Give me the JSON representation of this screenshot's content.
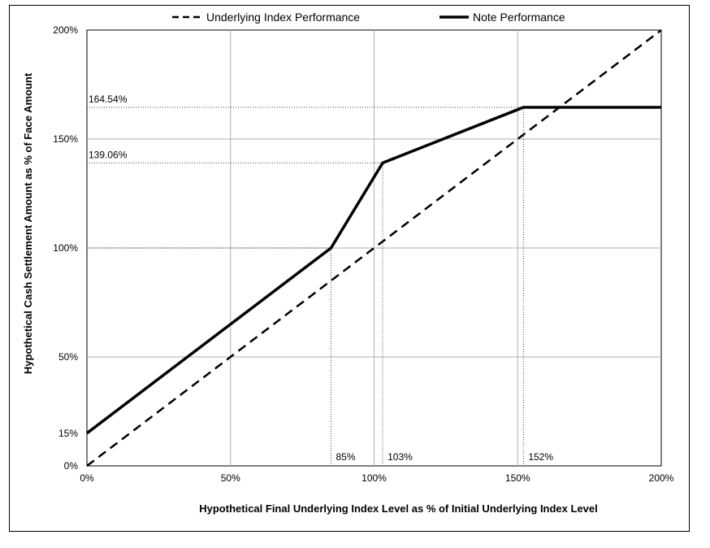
{
  "chart_data": {
    "type": "line",
    "xlabel": "Hypothetical Final Underlying Index Level as % of Initial Underlying Index Level",
    "ylabel": "Hypothetical Cash Settlement Amount as % of Face Amount",
    "xlim": [
      0,
      200
    ],
    "ylim": [
      0,
      200
    ],
    "x_ticks": [
      0,
      50,
      100,
      150,
      200
    ],
    "x_tick_labels": [
      "0%",
      "50%",
      "100%",
      "150%",
      "200%"
    ],
    "y_ticks": [
      0,
      15,
      50,
      100,
      150,
      200
    ],
    "y_tick_labels": [
      "0%",
      "15%",
      "50%",
      "100%",
      "150%",
      "200%"
    ],
    "grid": true,
    "legend_position": "top",
    "series": [
      {
        "name": "Underlying Index Performance",
        "style": "dashed",
        "color": "#000000",
        "x": [
          0,
          200
        ],
        "y": [
          0,
          200
        ]
      },
      {
        "name": "Note Performance",
        "style": "solid",
        "color": "#000000",
        "x": [
          0,
          85,
          103,
          152,
          200
        ],
        "y": [
          15,
          100,
          139.06,
          164.54,
          164.54
        ]
      }
    ],
    "annotations": {
      "y_levels": [
        {
          "value": 164.54,
          "label": "164.54%"
        },
        {
          "value": 139.06,
          "label": "139.06%"
        },
        {
          "value": 100,
          "label": ""
        }
      ],
      "x_levels": [
        {
          "value": 85,
          "label": "85%"
        },
        {
          "value": 103,
          "label": "103%"
        },
        {
          "value": 152,
          "label": "152%"
        }
      ]
    }
  }
}
